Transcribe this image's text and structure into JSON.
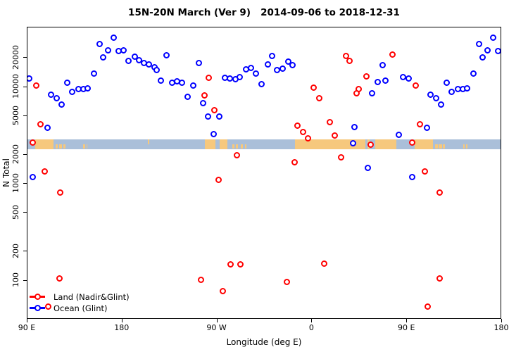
{
  "title": "15N-20N March (Ver 9)   2014-09-06 to 2018-12-31",
  "axes": {
    "x": {
      "label": "Longitude (deg E)",
      "range_deg_along_axis": [
        0,
        450
      ],
      "start_longitude": 90,
      "ticks": [
        {
          "offset": 0,
          "label": "90 E"
        },
        {
          "offset": 90,
          "label": "180"
        },
        {
          "offset": 180,
          "label": "90 W"
        },
        {
          "offset": 270,
          "label": "0"
        },
        {
          "offset": 360,
          "label": "90 E"
        },
        {
          "offset": 450,
          "label": "180"
        }
      ]
    },
    "y": {
      "label": "N Total",
      "scale": "log",
      "ticks": [
        100,
        200,
        500,
        1000,
        2000,
        5000,
        10000,
        20000
      ]
    }
  },
  "legend": {
    "items": [
      {
        "label": "Land (Nadir&Glint)",
        "color": "#ff0000"
      },
      {
        "label": "Ocean (Glint)",
        "color": "#0000ff"
      }
    ]
  },
  "map_band": {
    "ocean_color": "#aabfd9",
    "land_color": "#f6c87d",
    "approx_n_level": 2700,
    "patches": [
      {
        "from": 97.5,
        "to": 114.5,
        "cover": "full"
      },
      {
        "from": 116.5,
        "to": 119,
        "cover": "bottom"
      },
      {
        "from": 120,
        "to": 123,
        "cover": "bottom"
      },
      {
        "from": 124,
        "to": 126,
        "cover": "bottom"
      },
      {
        "from": 143,
        "to": 144.5,
        "cover": "bottom"
      },
      {
        "from": 146,
        "to": 147,
        "cover": "bottom"
      },
      {
        "from": -155.5,
        "to": -154.3,
        "cover": "top"
      },
      {
        "from": -102,
        "to": -92,
        "cover": "full"
      },
      {
        "from": -87.5,
        "to": -80.5,
        "cover": "full"
      },
      {
        "from": -75.5,
        "to": -73.5,
        "cover": "bottom"
      },
      {
        "from": -72.5,
        "to": -70.5,
        "cover": "bottom"
      },
      {
        "from": -67.5,
        "to": -65.5,
        "cover": "bottom"
      },
      {
        "from": -63.5,
        "to": -62.5,
        "cover": "bottom"
      },
      {
        "from": -16.5,
        "to": 50.5,
        "cover": "full"
      },
      {
        "from": 52.5,
        "to": 54.5,
        "cover": "full"
      },
      {
        "from": 60,
        "to": 80,
        "cover": "full"
      }
    ]
  },
  "chart_data": {
    "type": "scatter",
    "xlabel": "Longitude (deg E)",
    "ylabel": "N Total",
    "yscale": "log",
    "note_axis": "x axis spans 450 degrees starting at 90E; longitudes 90E-180E are plotted twice (both ends)",
    "series": [
      {
        "name": "Land (Nadir&Glint)",
        "color": "#ff0000",
        "points": [
          {
            "lon": 98.9,
            "n": 10300
          },
          {
            "lon": 32.2,
            "n": 20800
          },
          {
            "lon": 36.0,
            "n": 18300
          },
          {
            "lon": 76.7,
            "n": 21300
          },
          {
            "lon": 52.0,
            "n": 12700
          },
          {
            "lon": 44.3,
            "n": 9400
          },
          {
            "lon": 42.3,
            "n": 8500
          },
          {
            "lon": -97.5,
            "n": 12400
          },
          {
            "lon": -102.0,
            "n": 8100
          },
          {
            "lon": -92.6,
            "n": 5700
          },
          {
            "lon": 1.9,
            "n": 9750
          },
          {
            "lon": 7.1,
            "n": 7600
          },
          {
            "lon": 102.7,
            "n": 4100
          },
          {
            "lon": 95.5,
            "n": 2630
          },
          {
            "lon": 107.0,
            "n": 1330
          },
          {
            "lon": -71.2,
            "n": 1960
          },
          {
            "lon": -13.4,
            "n": 3950
          },
          {
            "lon": -8.0,
            "n": 3400
          },
          {
            "lon": -3.4,
            "n": 2940
          },
          {
            "lon": 17.1,
            "n": 4300
          },
          {
            "lon": 21.5,
            "n": 3130
          },
          {
            "lon": -16.3,
            "n": 1660
          },
          {
            "lon": -88.6,
            "n": 1080
          },
          {
            "lon": 27.8,
            "n": 1840
          },
          {
            "lon": 56.0,
            "n": 2520
          },
          {
            "lon": 121.5,
            "n": 800
          },
          {
            "lon": 121.0,
            "n": 104
          },
          {
            "lon": -105.3,
            "n": 100
          },
          {
            "lon": -84.2,
            "n": 77
          },
          {
            "lon": -76.8,
            "n": 145
          },
          {
            "lon": -67.9,
            "n": 145
          },
          {
            "lon": 11.8,
            "n": 147
          },
          {
            "lon": -23.8,
            "n": 95
          },
          {
            "lon": 110.0,
            "n": 53
          }
        ]
      },
      {
        "name": "Ocean (Glint)",
        "color": "#0000ff",
        "points": [
          {
            "lon": 92.2,
            "n": 12200
          },
          {
            "lon": 112.9,
            "n": 8290
          },
          {
            "lon": 117.8,
            "n": 7590
          },
          {
            "lon": 122.9,
            "n": 6530
          },
          {
            "lon": 127.9,
            "n": 10900
          },
          {
            "lon": 132.9,
            "n": 8800
          },
          {
            "lon": 138.5,
            "n": 9380
          },
          {
            "lon": 143.4,
            "n": 9380
          },
          {
            "lon": 147.4,
            "n": 9500
          },
          {
            "lon": 153.4,
            "n": 13600
          },
          {
            "lon": 159.0,
            "n": 27400
          },
          {
            "lon": 162.3,
            "n": 19900
          },
          {
            "lon": 166.8,
            "n": 23800
          },
          {
            "lon": 171.9,
            "n": 31900
          },
          {
            "lon": 176.8,
            "n": 23200
          },
          {
            "lon": -178.7,
            "n": 23800
          },
          {
            "lon": -173.7,
            "n": 18500
          },
          {
            "lon": -168.1,
            "n": 20500
          },
          {
            "lon": -163.6,
            "n": 18800
          },
          {
            "lon": -159.2,
            "n": 17500
          },
          {
            "lon": -154.3,
            "n": 17000
          },
          {
            "lon": -149.2,
            "n": 15900
          },
          {
            "lon": -146.9,
            "n": 14800
          },
          {
            "lon": -143.1,
            "n": 11500
          },
          {
            "lon": -138.0,
            "n": 21200
          },
          {
            "lon": -132.5,
            "n": 11000
          },
          {
            "lon": -127.6,
            "n": 11400
          },
          {
            "lon": -123.1,
            "n": 10900
          },
          {
            "lon": -118.0,
            "n": 7800
          },
          {
            "lon": -112.4,
            "n": 10200
          },
          {
            "lon": -107.1,
            "n": 17600
          },
          {
            "lon": -103.1,
            "n": 6710
          },
          {
            "lon": -98.2,
            "n": 4930
          },
          {
            "lon": -93.1,
            "n": 3250
          },
          {
            "lon": -87.9,
            "n": 4930
          },
          {
            "lon": -82.4,
            "n": 12400
          },
          {
            "lon": -77.5,
            "n": 12200
          },
          {
            "lon": -72.6,
            "n": 12000
          },
          {
            "lon": -68.2,
            "n": 12600
          },
          {
            "lon": -62.4,
            "n": 15100
          },
          {
            "lon": -57.9,
            "n": 15500
          },
          {
            "lon": -53.0,
            "n": 13500
          },
          {
            "lon": -47.5,
            "n": 10600
          },
          {
            "lon": -41.9,
            "n": 17000
          },
          {
            "lon": -37.9,
            "n": 20700
          },
          {
            "lon": -32.6,
            "n": 14800
          },
          {
            "lon": -27.9,
            "n": 15400
          },
          {
            "lon": -22.5,
            "n": 18000
          },
          {
            "lon": -18.1,
            "n": 16600
          },
          {
            "lon": 38.9,
            "n": 2600
          },
          {
            "lon": 40.5,
            "n": 3840
          },
          {
            "lon": 53.3,
            "n": 1445
          },
          {
            "lon": 57.1,
            "n": 8490
          },
          {
            "lon": 62.3,
            "n": 11200
          },
          {
            "lon": 67.2,
            "n": 16600
          },
          {
            "lon": 70.1,
            "n": 11500
          },
          {
            "lon": 82.3,
            "n": 3190
          },
          {
            "lon": 86.8,
            "n": 12500
          },
          {
            "lon": 95.4,
            "n": 1160
          },
          {
            "lon": 109.6,
            "n": 3740
          }
        ]
      }
    ]
  }
}
